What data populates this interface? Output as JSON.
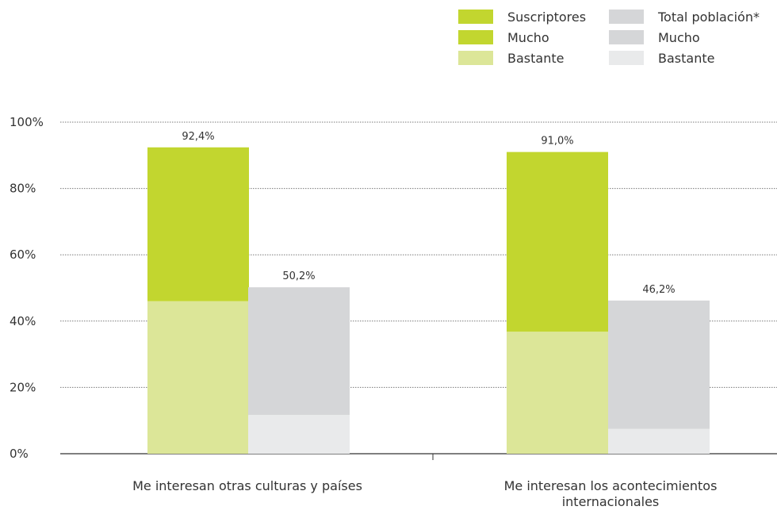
{
  "legend": {
    "columns": [
      {
        "rows": [
          {
            "label": "Suscriptores",
            "color": "#c2d62f"
          },
          {
            "label": "Mucho",
            "color": "#c2d62f"
          },
          {
            "label": "Bastante",
            "color": "#dce698"
          }
        ]
      },
      {
        "rows": [
          {
            "label": "Total población*",
            "color": "#d5d6d8"
          },
          {
            "label": "Mucho",
            "color": "#d5d6d8"
          },
          {
            "label": "Bastante",
            "color": "#e9eaeb"
          }
        ]
      }
    ]
  },
  "chart_data": {
    "type": "bar",
    "stacked": true,
    "categories": [
      "Me interesan otras culturas y países",
      "Me interesan los  acontecimientos internacionales"
    ],
    "ylim": [
      0,
      100
    ],
    "yticks": [
      0,
      20,
      40,
      60,
      80,
      100
    ],
    "ytick_labels": [
      "0%",
      "20%",
      "40%",
      "60%",
      "80%",
      "100%"
    ],
    "grid": true,
    "legend_position": "top-right",
    "groups": [
      {
        "name": "Suscriptores",
        "totals": [
          92.4,
          91.0
        ],
        "total_labels": [
          "92,4%",
          "91,0%"
        ],
        "segments": [
          {
            "name": "Bastante",
            "color": "#dce698",
            "values": [
              46.0,
              36.8
            ]
          },
          {
            "name": "Mucho",
            "color": "#c2d62f",
            "values": [
              46.4,
              54.2
            ]
          }
        ]
      },
      {
        "name": "Total población*",
        "totals": [
          50.2,
          46.2
        ],
        "total_labels": [
          "50,2%",
          "46,2%"
        ],
        "segments": [
          {
            "name": "Bastante",
            "color": "#e9eaeb",
            "values": [
              11.7,
              7.5
            ]
          },
          {
            "name": "Mucho",
            "color": "#d5d6d8",
            "values": [
              38.5,
              38.7
            ]
          }
        ]
      }
    ]
  }
}
